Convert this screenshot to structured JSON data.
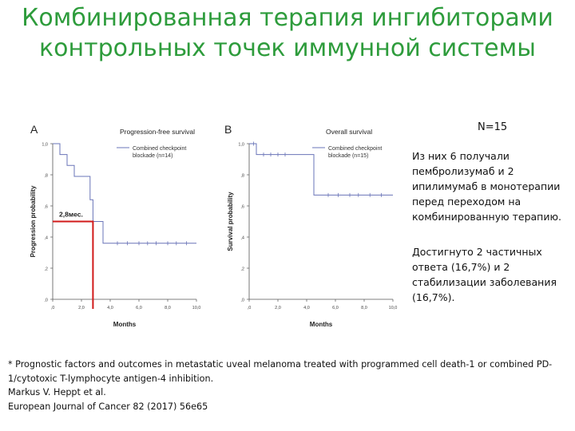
{
  "title": {
    "line1": "Комбинированная терапия ингибиторами",
    "line2": "контрольных точек иммунной системы"
  },
  "n_label": "N=15",
  "notes": [
    "Из них 6 получали пембролизумаб и 2 ипилимумаб в монотерапии перед переходом на комбинированную терапию.",
    "Достигнуто 2 частичных ответа (16,7%) и 2 стабилизации заболевания (16,7%)."
  ],
  "references": [
    "* Prognostic factors and outcomes in metastatic uveal melanoma treated with programmed cell death-1 or combined PD-1/cytotoxic T-lymphocyte antigen-4 inhibition.",
    "Markus V. Heppt et al.",
    "European Journal of Cancer 82 (2017) 56e65"
  ],
  "colors": {
    "title": "#2e9c3c",
    "curve": "#6a74b8",
    "highlight": "#d11a1a",
    "axis": "#555555"
  },
  "chart_data": [
    {
      "type": "line",
      "panel_label": "A",
      "title": "Progression-free survival",
      "xlabel": "Months",
      "ylabel": "Progression probability",
      "xlim": [
        0,
        10
      ],
      "ylim": [
        0,
        1
      ],
      "x_ticks": [
        ",0",
        "2,0",
        "4,0",
        "6,0",
        "8,0",
        "10,0"
      ],
      "y_ticks": [
        ",0",
        ",2",
        ",4",
        ",6",
        ",8",
        "1,0"
      ],
      "legend": "Combined checkpoint blockade (n=14)",
      "grid": false,
      "series": [
        {
          "step_x": [
            0,
            0.5,
            1.0,
            1.5,
            2.6,
            2.8,
            3.5,
            10.0
          ],
          "step_y": [
            1.0,
            0.93,
            0.86,
            0.79,
            0.64,
            0.5,
            0.36,
            0.36
          ],
          "censor_x": [
            4.5,
            5.2,
            6.0,
            6.6,
            7.2,
            8.0,
            8.6,
            9.3
          ]
        }
      ],
      "annotation": {
        "text": "2,8мес.",
        "x": 2.8,
        "y": 0.5
      }
    },
    {
      "type": "line",
      "panel_label": "B",
      "title": "Overall survival",
      "xlabel": "Months",
      "ylabel": "Survival probability",
      "xlim": [
        0,
        10
      ],
      "ylim": [
        0,
        1
      ],
      "x_ticks": [
        ",0",
        "2,0",
        "4,0",
        "6,0",
        "8,0",
        "10,0"
      ],
      "y_ticks": [
        ",0",
        ",2",
        ",4",
        ",6",
        ",8",
        "1,0"
      ],
      "legend": "Combined checkpoint blockade (n=15)",
      "grid": false,
      "series": [
        {
          "step_x": [
            0,
            0.5,
            3.0,
            4.5,
            10.0
          ],
          "step_y": [
            1.0,
            0.93,
            0.93,
            0.67,
            0.67
          ],
          "censor_x": [
            0.3,
            1.0,
            1.5,
            2.0,
            2.5,
            5.5,
            6.2,
            7.0,
            7.6,
            8.4,
            9.2
          ]
        }
      ]
    }
  ]
}
